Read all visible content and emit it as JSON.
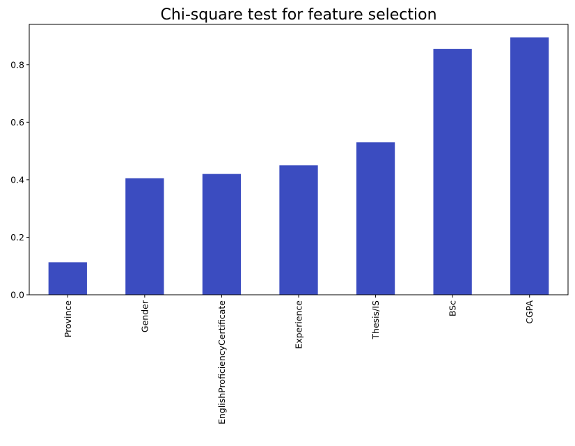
{
  "chart_data": {
    "type": "bar",
    "title": "Chi-square test for feature selection",
    "xlabel": "",
    "ylabel": "",
    "categories": [
      "Province",
      "Gender",
      "EnglishProficiencyCertificate",
      "Experience",
      "Thesis/IS",
      "BSc",
      "CGPA"
    ],
    "values": [
      0.113,
      0.405,
      0.42,
      0.45,
      0.53,
      0.855,
      0.895
    ],
    "ylim": [
      0,
      0.94
    ],
    "yticks": [
      0.0,
      0.2,
      0.4,
      0.6,
      0.8
    ],
    "ytick_labels": [
      "0.0",
      "0.2",
      "0.4",
      "0.6",
      "0.8"
    ],
    "bar_color": "#3b4cc0",
    "grid": false,
    "legend": false
  }
}
